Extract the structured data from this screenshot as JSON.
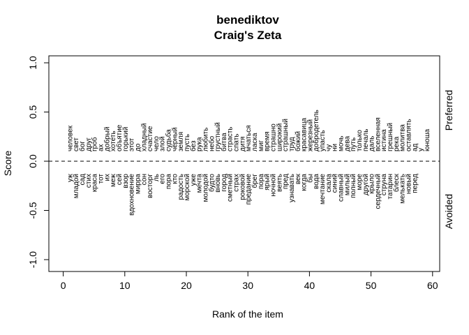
{
  "chart_data": {
    "type": "scatter",
    "title": "benediktov",
    "subtitle": "Craig's Zeta",
    "xlabel": "Rank of the item",
    "ylabel": "Score",
    "xlim": [
      0,
      60
    ],
    "ylim": [
      -1,
      1
    ],
    "xticks": [
      "0",
      "10",
      "20",
      "30",
      "40",
      "50",
      "60"
    ],
    "yticks": [
      "-1.0",
      "-0.5",
      "0.0",
      "0.5",
      "1.0"
    ],
    "zero_line": "dashed",
    "preferred_label": "Preferred",
    "avoided_label": "Avoided",
    "preferred_words": [
      "человек",
      "свет",
      "бог",
      "друг",
      "гроб",
      "ах",
      "добрый",
      "хотеть",
      "объятие",
      "горький",
      "этот",
      "до",
      "хладный",
      "счастие",
      "чело",
      "злой",
      "судьба",
      "чёрный",
      "земля",
      "пусть",
      "без",
      "рука",
      "любить",
      "небо",
      "грустный",
      "битва",
      "страсть",
      "спать",
      "дитя",
      "мчаться",
      "ласка",
      "миг",
      "время",
      "страшно",
      "широкий",
      "страшный",
      "труд",
      "божий",
      "красавица",
      "жерезный",
      "добродетель",
      "упасть",
      "чу",
      "ни",
      "мочь",
      "дева",
      "путь",
      "только",
      "печаль",
      "даль",
      "вселенная",
      "истина",
      "грешный",
      "река",
      "молитва",
      "оставлять",
      "ад",
      "у",
      "юноша"
    ],
    "avoided_words": [
      "уж",
      "младой",
      "сад",
      "стих",
      "краса",
      "тот",
      "их",
      "меж",
      "сей",
      "взор",
      "вдохновение",
      "мирра",
      "сон",
      "восторг",
      "ль",
      "его",
      "пора",
      "кто",
      "радость",
      "морской",
      "уже",
      "мечта",
      "молодой",
      "будто",
      "вновь",
      "город",
      "сметный",
      "страх",
      "роковой",
      "предание",
      "брег",
      "пора",
      "ярый",
      "ночной",
      "веять",
      "пред",
      "узнавать",
      "век",
      "когда",
      "бы",
      "вода",
      "мечтание",
      "скала",
      "синий",
      "славный",
      "милый",
      "полный",
      "море",
      "другой",
      "крыло",
      "сердечный",
      "струна",
      "татарин",
      "блеск",
      "мелькать",
      "новый",
      "перед"
    ]
  }
}
